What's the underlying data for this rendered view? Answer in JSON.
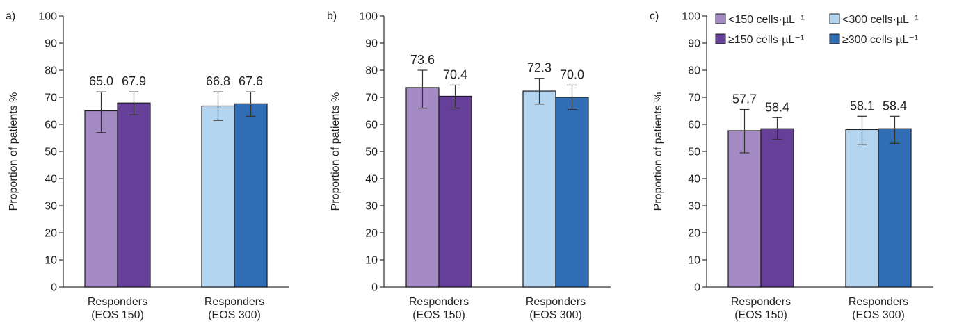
{
  "colors": {
    "lt150": "#a48bc3",
    "ge150": "#663f99",
    "lt300": "#b4d5f0",
    "ge300": "#306db5",
    "axis": "#333333"
  },
  "legend": [
    {
      "label": "<150 cells·µL⁻¹",
      "color": "#a48bc3"
    },
    {
      "label": "≥150 cells·µL⁻¹",
      "color": "#663f99"
    },
    {
      "label": "<300 cells·µL⁻¹",
      "color": "#b4d5f0"
    },
    {
      "label": "≥300 cells·µL⁻¹",
      "color": "#306db5"
    }
  ],
  "chart_data": [
    {
      "type": "bar",
      "panel_label": "a)",
      "ylabel": "Proportion of patients %",
      "ylim": [
        0,
        100
      ],
      "yticks": [
        "0",
        "10",
        "20",
        "30",
        "40",
        "50",
        "60",
        "70",
        "80",
        "90",
        "100"
      ],
      "categories": [
        "Responders\n(EOS 150)",
        "Responders\n(EOS 300)"
      ],
      "groups": [
        {
          "bars": [
            {
              "value": 65.0,
              "label": "65.0",
              "err": [
                57,
                72
              ],
              "color": "#a48bc3"
            },
            {
              "value": 67.9,
              "label": "67.9",
              "err": [
                63.5,
                72
              ],
              "color": "#663f99"
            }
          ]
        },
        {
          "bars": [
            {
              "value": 66.8,
              "label": "66.8",
              "err": [
                61.5,
                72
              ],
              "color": "#b4d5f0"
            },
            {
              "value": 67.6,
              "label": "67.6",
              "err": [
                63,
                72
              ],
              "color": "#306db5"
            }
          ]
        }
      ]
    },
    {
      "type": "bar",
      "panel_label": "b)",
      "ylabel": "Proportion of patients %",
      "ylim": [
        0,
        100
      ],
      "yticks": [
        "0",
        "10",
        "20",
        "30",
        "40",
        "50",
        "60",
        "70",
        "80",
        "90",
        "100"
      ],
      "categories": [
        "Responders\n(EOS 150)",
        "Responders\n(EOS 300)"
      ],
      "groups": [
        {
          "bars": [
            {
              "value": 73.6,
              "label": "73.6",
              "err": [
                66,
                80
              ],
              "color": "#a48bc3"
            },
            {
              "value": 70.4,
              "label": "70.4",
              "err": [
                66,
                74.5
              ],
              "color": "#663f99"
            }
          ]
        },
        {
          "bars": [
            {
              "value": 72.3,
              "label": "72.3",
              "err": [
                67.5,
                77
              ],
              "color": "#b4d5f0"
            },
            {
              "value": 70.0,
              "label": "70.0",
              "err": [
                65.5,
                74.5
              ],
              "color": "#306db5"
            }
          ]
        }
      ]
    },
    {
      "type": "bar",
      "panel_label": "c)",
      "ylabel": "Proportion of patients %",
      "ylim": [
        0,
        100
      ],
      "yticks": [
        "0",
        "10",
        "20",
        "30",
        "40",
        "50",
        "60",
        "70",
        "80",
        "90",
        "100"
      ],
      "categories": [
        "Responders\n(EOS 150)",
        "Responders\n(EOS 300)"
      ],
      "legend_position": "top",
      "groups": [
        {
          "bars": [
            {
              "value": 57.7,
              "label": "57.7",
              "err": [
                49.5,
                65.5
              ],
              "color": "#a48bc3"
            },
            {
              "value": 58.4,
              "label": "58.4",
              "err": [
                54.5,
                62.5
              ],
              "color": "#663f99"
            }
          ]
        },
        {
          "bars": [
            {
              "value": 58.1,
              "label": "58.1",
              "err": [
                52.5,
                63
              ],
              "color": "#b4d5f0"
            },
            {
              "value": 58.4,
              "label": "58.4",
              "err": [
                53,
                63
              ],
              "color": "#306db5"
            }
          ]
        }
      ]
    }
  ]
}
